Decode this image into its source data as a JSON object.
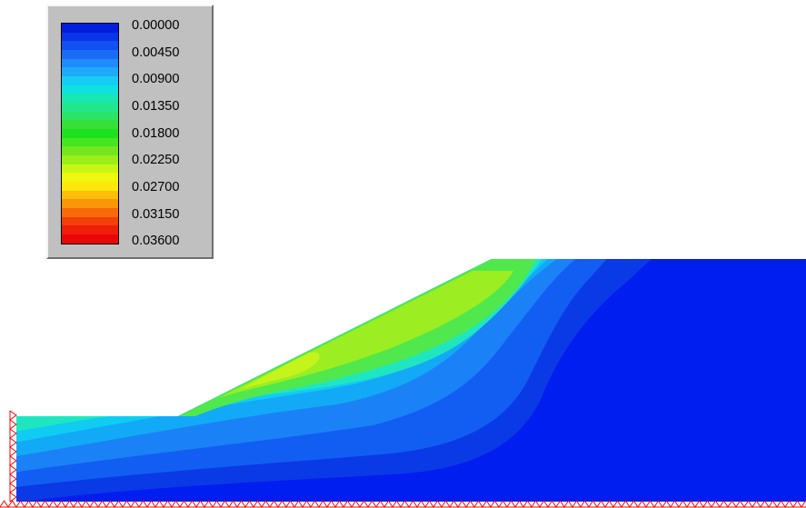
{
  "legend": {
    "values": [
      "0.00000",
      "0.00450",
      "0.00900",
      "0.01350",
      "0.01800",
      "0.02250",
      "0.02700",
      "0.03150",
      "0.03600"
    ],
    "colors": [
      "#001edc",
      "#0a34e8",
      "#1250f0",
      "#1a6cf6",
      "#1e8cfa",
      "#1eaaf8",
      "#14cdf2",
      "#10e0e0",
      "#18e6b4",
      "#22e68c",
      "#2ae46a",
      "#36e038",
      "#1ee01c",
      "#46e61e",
      "#74e620",
      "#9cee18",
      "#c8f614",
      "#eef80e",
      "#fce80c",
      "#fcbe0a",
      "#fa960a",
      "#f66c08",
      "#f24008",
      "#ee1e08",
      "#ea0606"
    ]
  },
  "model": {
    "background_color": "#001ef0",
    "support_color": "#ff0000",
    "contour_colors": [
      "#0a3ae6",
      "#125ef2",
      "#1a82f6",
      "#12aaf6",
      "#10ccf2",
      "#20e6c0",
      "#50e84c",
      "#9cee22",
      "#c4f41a"
    ]
  }
}
